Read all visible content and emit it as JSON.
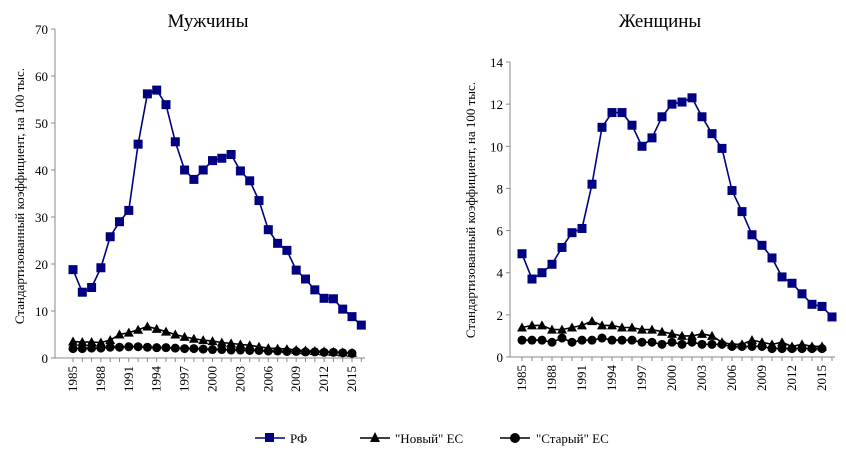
{
  "chart_data": [
    {
      "type": "line",
      "title": "Мужчины",
      "ylabel": "Стандартизованный коэффициент, на 100 тыс.",
      "ylim": [
        0,
        70
      ],
      "yticks": [
        0,
        10,
        20,
        30,
        40,
        50,
        60,
        70
      ],
      "xticks": [
        "1985",
        "1988",
        "1991",
        "1994",
        "1997",
        "2000",
        "2003",
        "2006",
        "2009",
        "2012",
        "2015"
      ],
      "x_start": 1985,
      "series": [
        {
          "name": "РФ",
          "color": "#000080",
          "marker": "square",
          "values": [
            18.8,
            14,
            15,
            19.2,
            25.8,
            29,
            31.4,
            45.5,
            56.2,
            57,
            53.9,
            46,
            40,
            38,
            40,
            42,
            42.5,
            43.3,
            39.8,
            37.7,
            33.5,
            27.3,
            24.4,
            22.9,
            18.7,
            16.8,
            14.5,
            12.7,
            12.6,
            10.4,
            8.8,
            7
          ]
        },
        {
          "name": "\"Новый\" ЕС",
          "color": "#000000",
          "marker": "triangle",
          "values": [
            3.5,
            3.4,
            3.4,
            3.3,
            3.8,
            5,
            5.4,
            6,
            6.7,
            6.2,
            5.6,
            5,
            4.5,
            4.1,
            3.8,
            3.6,
            3.3,
            3.1,
            2.9,
            2.7,
            2.4,
            2.1,
            2,
            1.9,
            1.7,
            1.6,
            1.5,
            1.4,
            1.3,
            1.2,
            1.1
          ]
        },
        {
          "name": "\"Старый\" ЕС",
          "color": "#000000",
          "marker": "circle",
          "values": [
            2,
            2,
            2.1,
            2.1,
            2.3,
            2.3,
            2.4,
            2.4,
            2.3,
            2.2,
            2.2,
            2.1,
            2,
            2,
            1.9,
            1.8,
            1.8,
            1.7,
            1.7,
            1.6,
            1.6,
            1.5,
            1.5,
            1.4,
            1.4,
            1.3,
            1.3,
            1.2,
            1.2,
            1.1,
            1.0
          ]
        }
      ]
    },
    {
      "type": "line",
      "title": "Женщины",
      "ylabel": "Стандартизованный коэффициент, на 100 тыс.",
      "ylim": [
        0,
        14
      ],
      "yticks": [
        0,
        2,
        4,
        6,
        8,
        10,
        12,
        14
      ],
      "xticks": [
        "1985",
        "1988",
        "1991",
        "1994",
        "1997",
        "2000",
        "2003",
        "2006",
        "2009",
        "2012",
        "2015"
      ],
      "x_start": 1985,
      "series": [
        {
          "name": "РФ",
          "color": "#000080",
          "marker": "square",
          "values": [
            4.9,
            3.7,
            4.0,
            4.4,
            5.2,
            5.9,
            6.1,
            8.2,
            10.9,
            11.6,
            11.6,
            11.0,
            10.0,
            10.4,
            11.4,
            12.0,
            12.1,
            12.3,
            11.4,
            10.6,
            9.9,
            7.9,
            6.9,
            5.8,
            5.3,
            4.7,
            3.8,
            3.5,
            3.0,
            2.5,
            2.4,
            1.9
          ]
        },
        {
          "name": "\"Новый\" ЕС",
          "color": "#000000",
          "marker": "triangle",
          "values": [
            1.4,
            1.5,
            1.5,
            1.3,
            1.3,
            1.4,
            1.5,
            1.7,
            1.5,
            1.5,
            1.4,
            1.4,
            1.3,
            1.3,
            1.2,
            1.1,
            1.0,
            1.0,
            1.1,
            1.0,
            0.7,
            0.6,
            0.6,
            0.8,
            0.7,
            0.6,
            0.7,
            0.5,
            0.6,
            0.5,
            0.5
          ]
        },
        {
          "name": "\"Старый\" ЕС",
          "color": "#000000",
          "marker": "circle",
          "values": [
            0.8,
            0.8,
            0.8,
            0.7,
            0.9,
            0.7,
            0.8,
            0.8,
            0.9,
            0.8,
            0.8,
            0.8,
            0.7,
            0.7,
            0.6,
            0.7,
            0.6,
            0.7,
            0.6,
            0.6,
            0.6,
            0.5,
            0.5,
            0.5,
            0.5,
            0.4,
            0.4,
            0.4,
            0.4,
            0.4,
            0.4
          ]
        }
      ]
    }
  ],
  "legend": {
    "items": [
      "РФ",
      "\"Новый\" ЕС",
      "\"Старый\" ЕС"
    ]
  }
}
